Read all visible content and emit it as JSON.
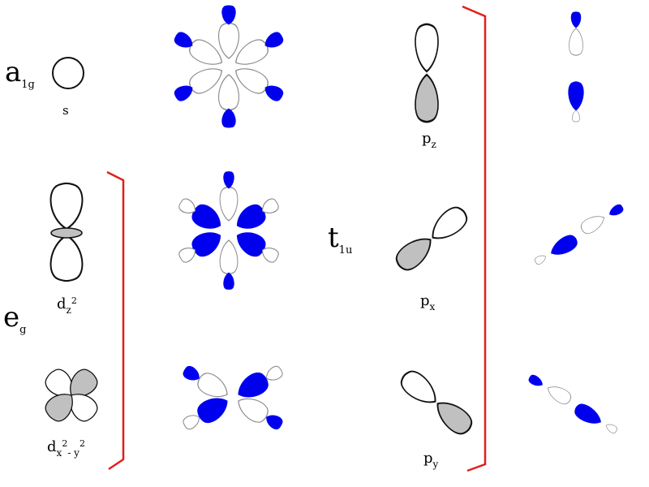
{
  "symmetry_labels": {
    "a1g": {
      "main": "a",
      "sub": "1g"
    },
    "eg": {
      "main": "e",
      "sub": "g"
    },
    "t1u": {
      "main": "t",
      "sub": "1u"
    }
  },
  "orbital_labels": {
    "s": {
      "main": "s"
    },
    "dz2": {
      "main": "d",
      "sub": "z",
      "sup": "2"
    },
    "dx2y2": {
      "main": "d",
      "sub1": "x",
      "sup1": "2",
      "sub_mid": "- y",
      "sup2": "2"
    },
    "pz": {
      "main": "p",
      "sub": "z"
    },
    "px": {
      "main": "p",
      "sub": "x"
    },
    "py": {
      "main": "p",
      "sub": "y"
    }
  },
  "colors": {
    "lobe_fill_blue": "#0000ee",
    "lobe_fill_grey": "#c0c0c0",
    "outline_dark": "#111111",
    "outline_light": "#8c8c8c",
    "bracket": "#e0201a"
  }
}
